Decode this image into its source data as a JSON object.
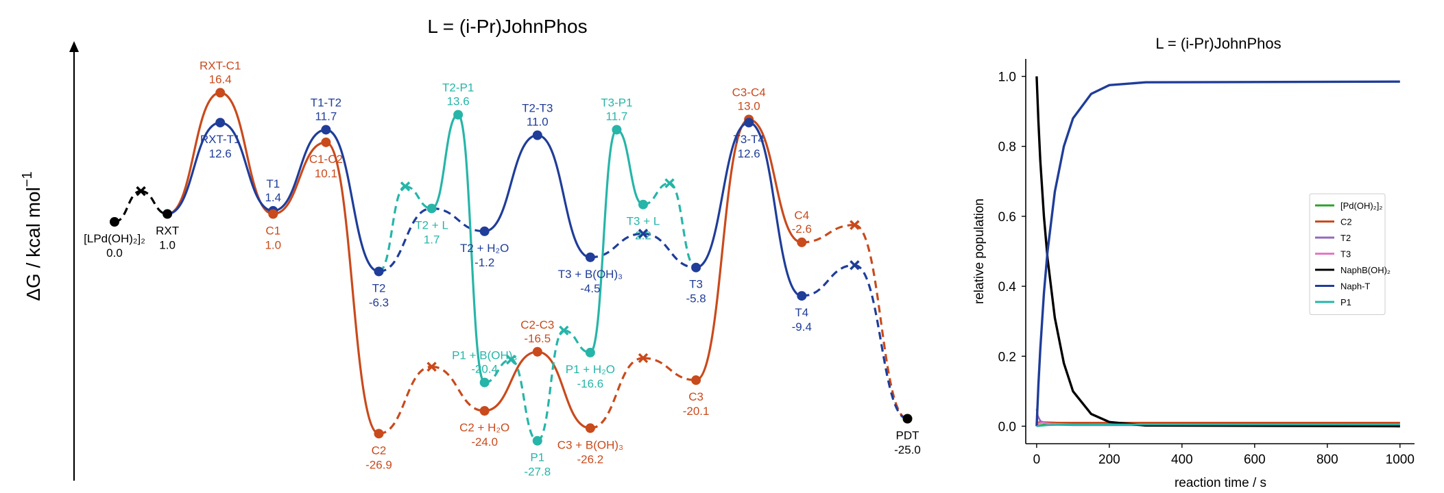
{
  "chart_data": [
    {
      "type": "line",
      "chart": "free-energy profile",
      "title": "L = (i-Pr)JohnPhos",
      "ylabel": "ΔG / kcal mol",
      "ylabel_sup": "−1",
      "ylim": [
        -32,
        20
      ],
      "colors": {
        "black": "#000000",
        "blue": "#1f3d99",
        "orange": "#c94a1c",
        "teal": "#26b5a8"
      },
      "points": [
        {
          "id": "LPd",
          "x": 0,
          "y": 0.0,
          "name": "[LPd(OH)₂]₂",
          "val": "0.0",
          "c": "black",
          "m": "o",
          "lpos": "below"
        },
        {
          "id": "RXT",
          "x": 1,
          "y": 1.0,
          "name": "RXT",
          "val": "1.0",
          "c": "black",
          "m": "o",
          "lpos": "below"
        },
        {
          "id": "RXT-C1",
          "x": 2,
          "y": 16.4,
          "name": "RXT-C1",
          "val": "16.4",
          "c": "orange",
          "m": "o",
          "lpos": "above"
        },
        {
          "id": "RXT-T1",
          "x": 2,
          "y": 12.6,
          "name": "RXT-T1",
          "val": "12.6",
          "c": "blue",
          "m": "o",
          "lpos": "below"
        },
        {
          "id": "T1",
          "x": 3,
          "y": 1.4,
          "name": "T1",
          "val": "1.4",
          "c": "blue",
          "m": "o",
          "lpos": "above"
        },
        {
          "id": "C1",
          "x": 3,
          "y": 1.0,
          "name": "C1",
          "val": "1.0",
          "c": "orange",
          "m": "o",
          "lpos": "below"
        },
        {
          "id": "T1-T2",
          "x": 4,
          "y": 11.7,
          "name": "T1-T2",
          "val": "11.7",
          "c": "blue",
          "m": "o",
          "lpos": "above"
        },
        {
          "id": "C1-C2",
          "x": 4,
          "y": 10.1,
          "name": "C1-C2",
          "val": "10.1",
          "c": "orange",
          "m": "o",
          "lpos": "below"
        },
        {
          "id": "T2",
          "x": 5,
          "y": -6.3,
          "name": "T2",
          "val": "-6.3",
          "c": "blue",
          "m": "o",
          "lpos": "below"
        },
        {
          "id": "C2",
          "x": 5,
          "y": -26.9,
          "name": "C2",
          "val": "-26.9",
          "c": "orange",
          "m": "o",
          "lpos": "below"
        },
        {
          "id": "T2+L",
          "x": 6,
          "y": 1.7,
          "name": "T2 + L",
          "val": "1.7",
          "c": "teal",
          "m": "o",
          "lpos": "below"
        },
        {
          "id": "T2-P1",
          "x": 6.5,
          "y": 13.6,
          "name": "T2-P1",
          "val": "13.6",
          "c": "teal",
          "m": "o",
          "lpos": "above"
        },
        {
          "id": "T2+H2O",
          "x": 7,
          "y": -1.2,
          "name": "T2 + H₂O",
          "val": "-1.2",
          "c": "blue",
          "m": "o",
          "lpos": "below"
        },
        {
          "id": "P1+B",
          "x": 7,
          "y": -20.4,
          "name": "P1 + B(OH)₃",
          "val": "-20.4",
          "c": "teal",
          "m": "o",
          "lpos": "above"
        },
        {
          "id": "C2+H2O",
          "x": 7,
          "y": -24.0,
          "name": "C2 + H₂O",
          "val": "-24.0",
          "c": "orange",
          "m": "o",
          "lpos": "below"
        },
        {
          "id": "P1",
          "x": 8,
          "y": -27.8,
          "name": "P1",
          "val": "-27.8",
          "c": "teal",
          "m": "o",
          "lpos": "below"
        },
        {
          "id": "T2-T3",
          "x": 8,
          "y": 11.0,
          "name": "T2-T3",
          "val": "11.0",
          "c": "blue",
          "m": "o",
          "lpos": "above"
        },
        {
          "id": "C2-C3",
          "x": 8,
          "y": -16.5,
          "name": "C2-C3",
          "val": "-16.5",
          "c": "orange",
          "m": "o",
          "lpos": "above"
        },
        {
          "id": "T3+B",
          "x": 9,
          "y": -4.5,
          "name": "T3 + B(OH)₃",
          "val": "-4.5",
          "c": "blue",
          "m": "o",
          "lpos": "below"
        },
        {
          "id": "P1+H2O",
          "x": 9,
          "y": -16.6,
          "name": "P1 + H₂O",
          "val": "-16.6",
          "c": "teal",
          "m": "o",
          "lpos": "below"
        },
        {
          "id": "C3+B",
          "x": 9,
          "y": -26.2,
          "name": "C3 + B(OH)₃",
          "val": "-26.2",
          "c": "orange",
          "m": "o",
          "lpos": "below"
        },
        {
          "id": "T3-P1",
          "x": 9.5,
          "y": 11.7,
          "name": "T3-P1",
          "val": "11.7",
          "c": "teal",
          "m": "o",
          "lpos": "above"
        },
        {
          "id": "T3+L",
          "x": 10,
          "y": 2.2,
          "name": "T3 + L",
          "val": "2.2",
          "c": "teal",
          "m": "o",
          "lpos": "below"
        },
        {
          "id": "T3",
          "x": 11,
          "y": -5.8,
          "name": "T3",
          "val": "-5.8",
          "c": "blue",
          "m": "o",
          "lpos": "below"
        },
        {
          "id": "C3",
          "x": 11,
          "y": -20.1,
          "name": "C3",
          "val": "-20.1",
          "c": "orange",
          "m": "o",
          "lpos": "below"
        },
        {
          "id": "C3-C4",
          "x": 12,
          "y": 13.0,
          "name": "C3-C4",
          "val": "13.0",
          "c": "orange",
          "m": "o",
          "lpos": "above"
        },
        {
          "id": "T3-T4",
          "x": 12,
          "y": 12.6,
          "name": "T3-T4",
          "val": "12.6",
          "c": "blue",
          "m": "o",
          "lpos": "below"
        },
        {
          "id": "C4",
          "x": 13,
          "y": -2.6,
          "name": "C4",
          "val": "-2.6",
          "c": "orange",
          "m": "o",
          "lpos": "above"
        },
        {
          "id": "T4",
          "x": 13,
          "y": -9.4,
          "name": "T4",
          "val": "-9.4",
          "c": "blue",
          "m": "o",
          "lpos": "below"
        },
        {
          "id": "PDT",
          "x": 15,
          "y": -25.0,
          "name": "PDT",
          "val": "-25.0",
          "c": "black",
          "m": "o",
          "lpos": "below"
        }
      ],
      "crosses": [
        {
          "id": "X-lp",
          "x": 0.5,
          "y": 3.9,
          "c": "black"
        },
        {
          "id": "X-t2l",
          "x": 5.5,
          "y": 4.5,
          "c": "teal"
        },
        {
          "id": "X-c2",
          "x": 6,
          "y": -18.4,
          "c": "orange"
        },
        {
          "id": "X-p1b",
          "x": 7.5,
          "y": -17.5,
          "c": "teal"
        },
        {
          "id": "X-p1h",
          "x": 8.5,
          "y": -13.8,
          "c": "teal"
        },
        {
          "id": "X-t3h",
          "x": 10,
          "y": -1.5,
          "c": "blue"
        },
        {
          "id": "X-c3b",
          "x": 10,
          "y": -17.3,
          "c": "orange"
        },
        {
          "id": "X-t3l",
          "x": 10.5,
          "y": 4.9,
          "c": "teal"
        },
        {
          "id": "X-c4",
          "x": 14,
          "y": -0.4,
          "c": "orange"
        },
        {
          "id": "X-t4",
          "x": 14,
          "y": -5.5,
          "c": "blue"
        }
      ],
      "segments": [
        {
          "from": "LPd",
          "to": "X-lp",
          "c": "black",
          "dash": true
        },
        {
          "from": "X-lp",
          "to": "RXT",
          "c": "black",
          "dash": true
        },
        {
          "from": "RXT",
          "to": "RXT-C1",
          "c": "orange"
        },
        {
          "from": "RXT-C1",
          "to": "C1",
          "c": "orange"
        },
        {
          "from": "C1",
          "to": "C1-C2",
          "c": "orange"
        },
        {
          "from": "C1-C2",
          "to": "C2",
          "c": "orange"
        },
        {
          "from": "C2",
          "to": "X-c2",
          "c": "orange",
          "dash": true
        },
        {
          "from": "X-c2",
          "to": "C2+H2O",
          "c": "orange",
          "dash": true
        },
        {
          "from": "C2+H2O",
          "to": "C2-C3",
          "c": "orange"
        },
        {
          "from": "C2-C3",
          "to": "C3+B",
          "c": "orange"
        },
        {
          "from": "C3+B",
          "to": "X-c3b",
          "c": "orange",
          "dash": true
        },
        {
          "from": "X-c3b",
          "to": "C3",
          "c": "orange",
          "dash": true
        },
        {
          "from": "C3",
          "to": "C3-C4",
          "c": "orange"
        },
        {
          "from": "C3-C4",
          "to": "C4",
          "c": "orange"
        },
        {
          "from": "C4",
          "to": "X-c4",
          "c": "orange",
          "dash": true
        },
        {
          "from": "X-c4",
          "to": "PDT",
          "c": "orange",
          "dash": true
        },
        {
          "from": "RXT",
          "to": "RXT-T1",
          "c": "blue"
        },
        {
          "from": "RXT-T1",
          "to": "T1",
          "c": "blue"
        },
        {
          "from": "T1",
          "to": "T1-T2",
          "c": "blue"
        },
        {
          "from": "T1-T2",
          "to": "T2",
          "c": "blue"
        },
        {
          "from": "T2",
          "to": "T2+L",
          "c": "blue",
          "dash": true
        },
        {
          "from": "T2+L",
          "to": "T2+H2O",
          "c": "blue",
          "dash": true
        },
        {
          "from": "T2+H2O",
          "to": "T2-T3",
          "c": "blue"
        },
        {
          "from": "T2-T3",
          "to": "T3+B",
          "c": "blue"
        },
        {
          "from": "T3+B",
          "to": "X-t3h",
          "c": "blue",
          "dash": true
        },
        {
          "from": "X-t3h",
          "to": "T3",
          "c": "blue",
          "dash": true
        },
        {
          "from": "T3",
          "to": "T3-T4",
          "c": "blue"
        },
        {
          "from": "T3-T4",
          "to": "T4",
          "c": "blue"
        },
        {
          "from": "T4",
          "to": "X-t4",
          "c": "blue",
          "dash": true
        },
        {
          "from": "X-t4",
          "to": "PDT",
          "c": "blue",
          "dash": true
        },
        {
          "from": "T2",
          "to": "X-t2l",
          "c": "teal",
          "dash": true
        },
        {
          "from": "X-t2l",
          "to": "T2+L",
          "c": "teal",
          "dash": true
        },
        {
          "from": "T2+L",
          "to": "T2-P1",
          "c": "teal"
        },
        {
          "from": "T2-P1",
          "to": "P1+B",
          "c": "teal"
        },
        {
          "from": "P1+B",
          "to": "X-p1b",
          "c": "teal",
          "dash": true
        },
        {
          "from": "X-p1b",
          "to": "P1",
          "c": "teal",
          "dash": true
        },
        {
          "from": "P1",
          "to": "X-p1h",
          "c": "teal",
          "dash": true
        },
        {
          "from": "X-p1h",
          "to": "P1+H2O",
          "c": "teal",
          "dash": true
        },
        {
          "from": "P1+H2O",
          "to": "T3-P1",
          "c": "teal"
        },
        {
          "from": "T3-P1",
          "to": "T3+L",
          "c": "teal"
        },
        {
          "from": "T3+L",
          "to": "X-t3l",
          "c": "teal",
          "dash": true
        },
        {
          "from": "X-t3l",
          "to": "T3",
          "c": "teal",
          "dash": true
        }
      ]
    },
    {
      "type": "line",
      "title": "L = (i-Pr)JohnPhos",
      "xlabel": "reaction time / s",
      "ylabel": "relative population",
      "xlim": [
        -30,
        1040
      ],
      "ylim": [
        -0.05,
        1.05
      ],
      "xticks": [
        0,
        200,
        400,
        600,
        800,
        1000
      ],
      "yticks": [
        0.0,
        0.2,
        0.4,
        0.6,
        0.8,
        1.0
      ],
      "legend_position": "center-right",
      "series": [
        {
          "name": "[Pd(OH)₂]₂",
          "color": "#2ca02c",
          "x": [
            0,
            10,
            30,
            60,
            100,
            200,
            400,
            1000
          ],
          "y": [
            0.0,
            0.003,
            0.006,
            0.008,
            0.009,
            0.01,
            0.01,
            0.01
          ]
        },
        {
          "name": "C2",
          "color": "#c94a1c",
          "x": [
            0,
            3,
            10,
            30,
            60,
            100,
            200,
            1000
          ],
          "y": [
            0.0,
            0.01,
            0.012,
            0.011,
            0.01,
            0.01,
            0.01,
            0.01
          ]
        },
        {
          "name": "T2",
          "color": "#9467bd",
          "x": [
            0,
            3,
            10,
            30,
            60,
            100,
            1000
          ],
          "y": [
            0.05,
            0.03,
            0.015,
            0.006,
            0.004,
            0.003,
            0.003
          ]
        },
        {
          "name": "T3",
          "color": "#e377c2",
          "x": [
            0,
            5,
            15,
            40,
            100,
            1000
          ],
          "y": [
            0.0,
            0.008,
            0.01,
            0.007,
            0.005,
            0.005
          ]
        },
        {
          "name": "NaphB(OH)₂",
          "color": "#000000",
          "x": [
            0,
            5,
            10,
            20,
            30,
            50,
            75,
            100,
            150,
            200,
            300,
            1000
          ],
          "y": [
            1.0,
            0.87,
            0.76,
            0.6,
            0.48,
            0.31,
            0.18,
            0.1,
            0.035,
            0.012,
            0.002,
            0.0
          ]
        },
        {
          "name": "Naph-T",
          "color": "#1f3d99",
          "x": [
            0,
            5,
            10,
            20,
            30,
            50,
            75,
            100,
            150,
            200,
            300,
            1000
          ],
          "y": [
            0.0,
            0.12,
            0.22,
            0.38,
            0.5,
            0.67,
            0.8,
            0.88,
            0.95,
            0.975,
            0.983,
            0.985
          ]
        },
        {
          "name": "P1",
          "color": "#26b5a8",
          "x": [
            0,
            10,
            30,
            60,
            100,
            200,
            1000
          ],
          "y": [
            0.0,
            0.001,
            0.003,
            0.004,
            0.005,
            0.005,
            0.005
          ]
        }
      ]
    }
  ]
}
